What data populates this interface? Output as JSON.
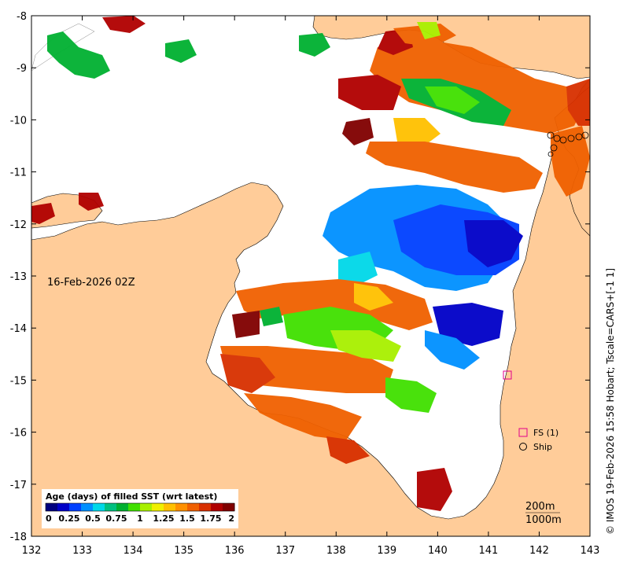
{
  "date_label": "16-Feb-2026 02Z",
  "credit": "© IMOS 19-Feb-2026 15:58 Hobart; Tscale=CARS+[-1 1]",
  "colorbar": {
    "title": "Age (days) of filled SST (wrt latest)",
    "ticks": [
      "0",
      "0.25",
      "0.5",
      "0.75",
      "1",
      "1.25",
      "1.5",
      "1.75",
      "2"
    ],
    "colors": [
      "#00007f",
      "#0000c8",
      "#0040ff",
      "#0090ff",
      "#00d8e8",
      "#00c080",
      "#00b030",
      "#40e000",
      "#a8f000",
      "#f0f000",
      "#ffc000",
      "#ff9000",
      "#f06000",
      "#d83000",
      "#b00000",
      "#800000"
    ]
  },
  "legend": {
    "fs_label": "FS (1)",
    "ship_label": "Ship",
    "fs_color": "#e0008c"
  },
  "depth_labels": [
    "200m",
    "1000m"
  ],
  "axes": {
    "x_ticks": [
      "132",
      "133",
      "134",
      "135",
      "136",
      "137",
      "138",
      "139",
      "140",
      "141",
      "142",
      "143"
    ],
    "y_ticks": [
      "-8",
      "-9",
      "-10",
      "-11",
      "-12",
      "-13",
      "-14",
      "-15",
      "-16",
      "-17",
      "-18"
    ],
    "lon_range": [
      132,
      143
    ],
    "lat_range": [
      -18,
      -8
    ]
  },
  "colors": {
    "land": "#ffcc99",
    "sea": "#ffffff"
  }
}
